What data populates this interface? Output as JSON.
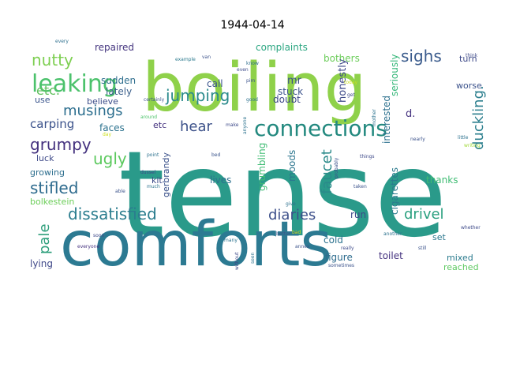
{
  "title": "1944-04-14",
  "colors": {
    "background": "#ffffff",
    "palette": "viridis"
  },
  "words": [
    {
      "text": "tense",
      "color": "#2a9a8a"
    },
    {
      "text": "boiling",
      "color": "#8fd14a"
    },
    {
      "text": "comforts",
      "color": "#2c7a92"
    },
    {
      "text": "connections",
      "color": "#23897f"
    },
    {
      "text": "leaking",
      "color": "#4cc26c"
    },
    {
      "text": "dissatisfied",
      "color": "#2b7d8e"
    },
    {
      "text": "jumping",
      "color": "#2a8a8c"
    },
    {
      "text": "nutty",
      "color": "#7ecf52"
    },
    {
      "text": "sighs",
      "color": "#3a5b8c"
    },
    {
      "text": "musings",
      "color": "#2d6f8f"
    },
    {
      "text": "ugly",
      "color": "#5cc95e"
    },
    {
      "text": "grumpy",
      "color": "#43307e"
    },
    {
      "text": "stifled",
      "color": "#2e6b8e"
    },
    {
      "text": "hear",
      "color": "#3c5189"
    },
    {
      "text": "diaries",
      "color": "#3c4f8a"
    },
    {
      "text": "drivel",
      "color": "#2aa07f"
    },
    {
      "text": "duckling.",
      "color": "#2c7f8e"
    },
    {
      "text": "faucet",
      "color": "#2b8a8a"
    },
    {
      "text": "pale",
      "color": "#2f9f7c"
    },
    {
      "text": "etc.",
      "color": "#5fbf5c"
    },
    {
      "text": "carping",
      "color": "#3b528b"
    },
    {
      "text": "lately",
      "color": "#3a5f8b"
    },
    {
      "text": "repaired",
      "color": "#44357f"
    },
    {
      "text": "sudden",
      "color": "#2e6e8e"
    },
    {
      "text": "believe",
      "color": "#3d4e8a"
    },
    {
      "text": "faces",
      "color": "#2c728e"
    },
    {
      "text": "etc",
      "color": "#43307e"
    },
    {
      "text": "luck",
      "color": "#3e4a89"
    },
    {
      "text": "growing",
      "color": "#2d6e8e"
    },
    {
      "text": "kit",
      "color": "#3e4d8a"
    },
    {
      "text": "bolkestein",
      "color": "#6cce59"
    },
    {
      "text": "gerbrandy",
      "color": "#3b528b"
    },
    {
      "text": "lives",
      "color": "#2c718e"
    },
    {
      "text": "call",
      "color": "#3a548c"
    },
    {
      "text": "complaints",
      "color": "#2ba681"
    },
    {
      "text": "bothers",
      "color": "#6ccd5a"
    },
    {
      "text": "mr",
      "color": "#3c4f8a"
    },
    {
      "text": "stuck",
      "color": "#3b528b"
    },
    {
      "text": "honestly",
      "color": "#3e4a89"
    },
    {
      "text": "seriously",
      "color": "#35b779"
    },
    {
      "text": "interested",
      "color": "#2d718e"
    },
    {
      "text": "doubt",
      "color": "#3e4989"
    },
    {
      "text": "moods",
      "color": "#2b758e"
    },
    {
      "text": "grumbling",
      "color": "#3fbc73"
    },
    {
      "text": "cigarettes",
      "color": "#2b7b8e"
    },
    {
      "text": "run",
      "color": "#3e4989"
    },
    {
      "text": "thanks",
      "color": "#3fbc73"
    },
    {
      "text": "figure",
      "color": "#2e6c8e"
    },
    {
      "text": "cold",
      "color": "#2c728e"
    },
    {
      "text": "toilet",
      "color": "#43307e"
    },
    {
      "text": "set",
      "color": "#2b778e"
    },
    {
      "text": "mixed",
      "color": "#2b7b8e"
    },
    {
      "text": "reached",
      "color": "#5ec962"
    },
    {
      "text": "lying",
      "color": "#3f4889"
    },
    {
      "text": "turn",
      "color": "#3e4a89"
    },
    {
      "text": "worse",
      "color": "#3b528b"
    },
    {
      "text": "d.",
      "color": "#43307e"
    },
    {
      "text": "use",
      "color": "#3a548c"
    },
    {
      "text": "every",
      "color": "#2d6f8e"
    },
    {
      "text": "example",
      "color": "#2c7a8e"
    },
    {
      "text": "even",
      "color": "#3e4a89"
    },
    {
      "text": "know",
      "color": "#2e6c8e"
    },
    {
      "text": "pim",
      "color": "#3b528b"
    },
    {
      "text": "good",
      "color": "#2d718e"
    },
    {
      "text": "think",
      "color": "#3e4a89"
    },
    {
      "text": "certainly",
      "color": "#3b528b"
    },
    {
      "text": "around",
      "color": "#4ec36b"
    },
    {
      "text": "day",
      "color": "#cde11d"
    },
    {
      "text": "make",
      "color": "#3e4a89"
    },
    {
      "text": "bed",
      "color": "#3a548c"
    },
    {
      "text": "point",
      "color": "#2d718e"
    },
    {
      "text": "things",
      "color": "#3e4a89"
    },
    {
      "text": "nearly",
      "color": "#3b528b"
    },
    {
      "text": "little",
      "color": "#2c728e"
    },
    {
      "text": "writing",
      "color": "#a0da39"
    },
    {
      "text": "able",
      "color": "#3b528b"
    },
    {
      "text": "much",
      "color": "#2c728e"
    },
    {
      "text": "dussel",
      "color": "#3e4a89"
    },
    {
      "text": "taken",
      "color": "#3b528b"
    },
    {
      "text": "give",
      "color": "#2d718e"
    },
    {
      "text": "soon",
      "color": "#3e4a89"
    },
    {
      "text": "better",
      "color": "#3b528b"
    },
    {
      "text": "another",
      "color": "#2c728e"
    },
    {
      "text": "whether",
      "color": "#3e4a89"
    },
    {
      "text": "still",
      "color": "#3b528b"
    },
    {
      "text": "everyone",
      "color": "#43307e"
    },
    {
      "text": "many",
      "color": "#2c728e"
    },
    {
      "text": "annex",
      "color": "#3b528b"
    },
    {
      "text": "really",
      "color": "#3e4a89"
    },
    {
      "text": "sometimes",
      "color": "#3b528b"
    },
    {
      "text": "without",
      "color": "#3e4a89"
    },
    {
      "text": "seen",
      "color": "#2c728e"
    },
    {
      "text": "van",
      "color": "#3b528b"
    },
    {
      "text": "today",
      "color": "#cde11d"
    },
    {
      "text": "get",
      "color": "#3e4a89"
    },
    {
      "text": "anyone",
      "color": "#2c728e"
    },
    {
      "text": "probably",
      "color": "#3b528b"
    },
    {
      "text": "bad",
      "color": "#cde11d"
    },
    {
      "text": "mother",
      "color": "#2c728e"
    }
  ]
}
